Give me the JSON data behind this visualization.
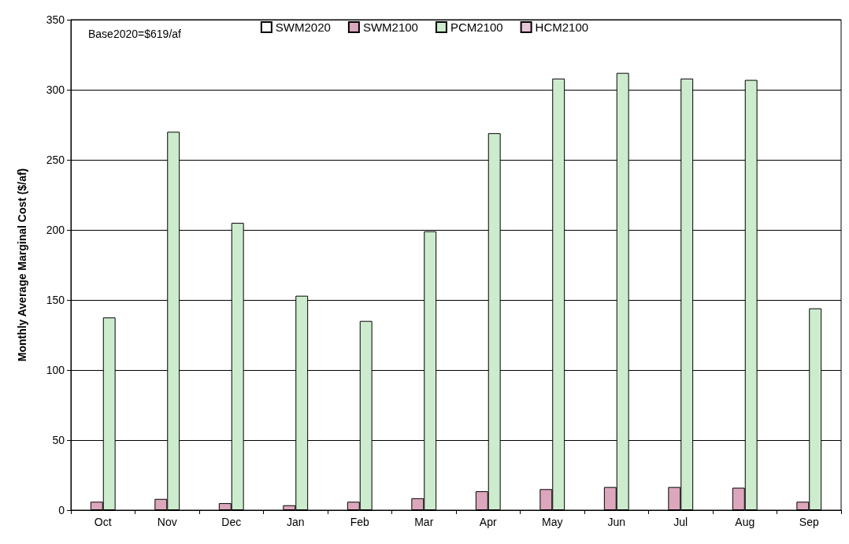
{
  "chart_data": {
    "type": "bar",
    "ylabel": "Monthly Average Marginal Cost ($/af)",
    "annotations": [
      "Base2020=$619/af"
    ],
    "categories": [
      "Oct",
      "Nov",
      "Dec",
      "Jan",
      "Feb",
      "Mar",
      "Apr",
      "May",
      "Jun",
      "Jul",
      "Aug",
      "Sep"
    ],
    "series": [
      {
        "name": "SWM2020",
        "color": "#ffffff",
        "values": [
          0,
          0,
          0,
          0,
          0,
          0,
          0,
          0,
          0,
          0,
          0,
          0
        ]
      },
      {
        "name": "SWM2100",
        "color": "#dca6bd",
        "values": [
          6,
          8,
          5,
          3.5,
          6,
          8.5,
          13.5,
          15,
          16.5,
          16.5,
          16,
          6
        ]
      },
      {
        "name": "PCM2100",
        "color": "#cdeccd",
        "values": [
          137.5,
          270,
          205,
          153,
          135,
          199,
          269,
          308,
          312,
          308,
          307,
          144
        ]
      },
      {
        "name": "HCM2100",
        "color": "#e9c6da",
        "values": [
          0,
          0,
          0,
          0,
          0,
          0,
          0,
          0,
          0,
          0,
          0,
          0
        ]
      }
    ],
    "ylim": [
      0,
      350
    ],
    "yticks": [
      0,
      50,
      100,
      150,
      200,
      250,
      300,
      350
    ],
    "grid": "y",
    "legend": "top"
  }
}
